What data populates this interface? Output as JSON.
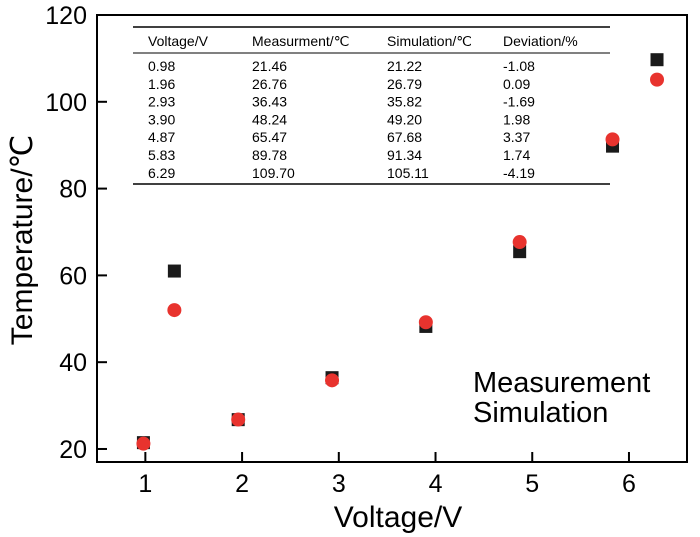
{
  "chart_data": {
    "type": "scatter",
    "title": "",
    "xlabel": "Voltage/V",
    "ylabel": "Temperature/℃",
    "xlim": [
      0.5,
      6.6
    ],
    "ylim": [
      17,
      120
    ],
    "x_ticks": [
      1,
      2,
      3,
      4,
      5,
      6
    ],
    "y_ticks": [
      20,
      40,
      60,
      80,
      100,
      120
    ],
    "grid": false,
    "legend": {
      "position": "bottom-right",
      "entries": [
        "Measurement",
        "Simulation"
      ]
    },
    "series": [
      {
        "name": "Measurement",
        "marker": "square",
        "color": "#1a1a1a",
        "points": [
          {
            "x": 0.98,
            "y": 21.46
          },
          {
            "x": 1.3,
            "y": 61.0
          },
          {
            "x": 1.96,
            "y": 26.76
          },
          {
            "x": 2.93,
            "y": 36.43
          },
          {
            "x": 3.9,
            "y": 48.24
          },
          {
            "x": 4.87,
            "y": 65.47
          },
          {
            "x": 5.83,
            "y": 89.78
          },
          {
            "x": 6.29,
            "y": 109.7
          }
        ]
      },
      {
        "name": "Simulation",
        "marker": "circle",
        "color": "#e8332e",
        "points": [
          {
            "x": 0.98,
            "y": 21.22
          },
          {
            "x": 1.3,
            "y": 52.0
          },
          {
            "x": 1.96,
            "y": 26.79
          },
          {
            "x": 2.93,
            "y": 35.82
          },
          {
            "x": 3.9,
            "y": 49.2
          },
          {
            "x": 4.87,
            "y": 67.68
          },
          {
            "x": 5.83,
            "y": 91.34
          },
          {
            "x": 6.29,
            "y": 105.11
          }
        ]
      }
    ],
    "table": {
      "columns": [
        "Voltage/V",
        "Measurment/℃",
        "Simulation/℃",
        "Deviation/%"
      ],
      "rows": [
        [
          "0.98",
          "21.46",
          "21.22",
          "-1.08"
        ],
        [
          "1.96",
          "26.76",
          "26.79",
          "0.09"
        ],
        [
          "2.93",
          "36.43",
          "35.82",
          "-1.69"
        ],
        [
          "3.90",
          "48.24",
          "49.20",
          "1.98"
        ],
        [
          "4.87",
          "65.47",
          "67.68",
          "3.37"
        ],
        [
          "5.83",
          "89.78",
          "91.34",
          "1.74"
        ],
        [
          "6.29",
          "109.70",
          "105.11",
          "-4.19"
        ]
      ]
    }
  }
}
